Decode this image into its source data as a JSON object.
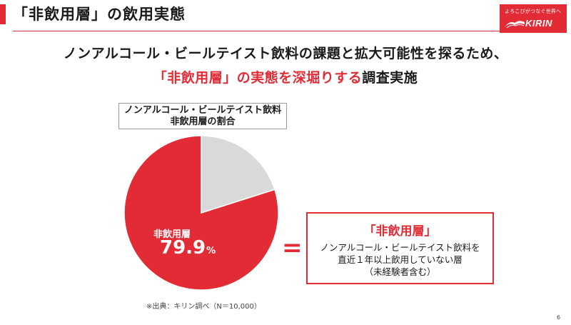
{
  "slide": {
    "title": "「非飲用層」の飲用実態",
    "page_number": "6"
  },
  "logo": {
    "tagline": "よろこびがつなぐ世界へ",
    "brand": "KIRIN"
  },
  "headline": {
    "line1": "ノンアルコール・ビールテイスト飲料の課題と拡大可能性を探るため、",
    "line2_highlight": "「非飲用層」の実態を深堀りする",
    "line2_rest": "調査実施"
  },
  "definition": {
    "equals_sign": "=",
    "title": "「非飲用層」",
    "lines": [
      "ノンアルコール・ビールテイスト飲料を",
      "直近１年以上飲用していない層",
      "（未経験者含む）"
    ]
  },
  "source_note": "※出典：キリン調べ（N＝10,000）",
  "colors": {
    "accent": "#e32b35",
    "other_slice": "#d9d9d9"
  },
  "chart_data": {
    "type": "pie",
    "title_lines": [
      "ノンアルコール・ビールテイスト飲料",
      "非飲用層の割合"
    ],
    "slices": [
      {
        "label": "非飲用層",
        "value": 79.9,
        "display_value": "79.9",
        "unit": "%",
        "color": "#e32b35"
      },
      {
        "label": "",
        "value": 20.1,
        "color": "#d9d9d9"
      }
    ],
    "start_angle_deg": 0,
    "direction": "clockwise",
    "legend": "none"
  }
}
